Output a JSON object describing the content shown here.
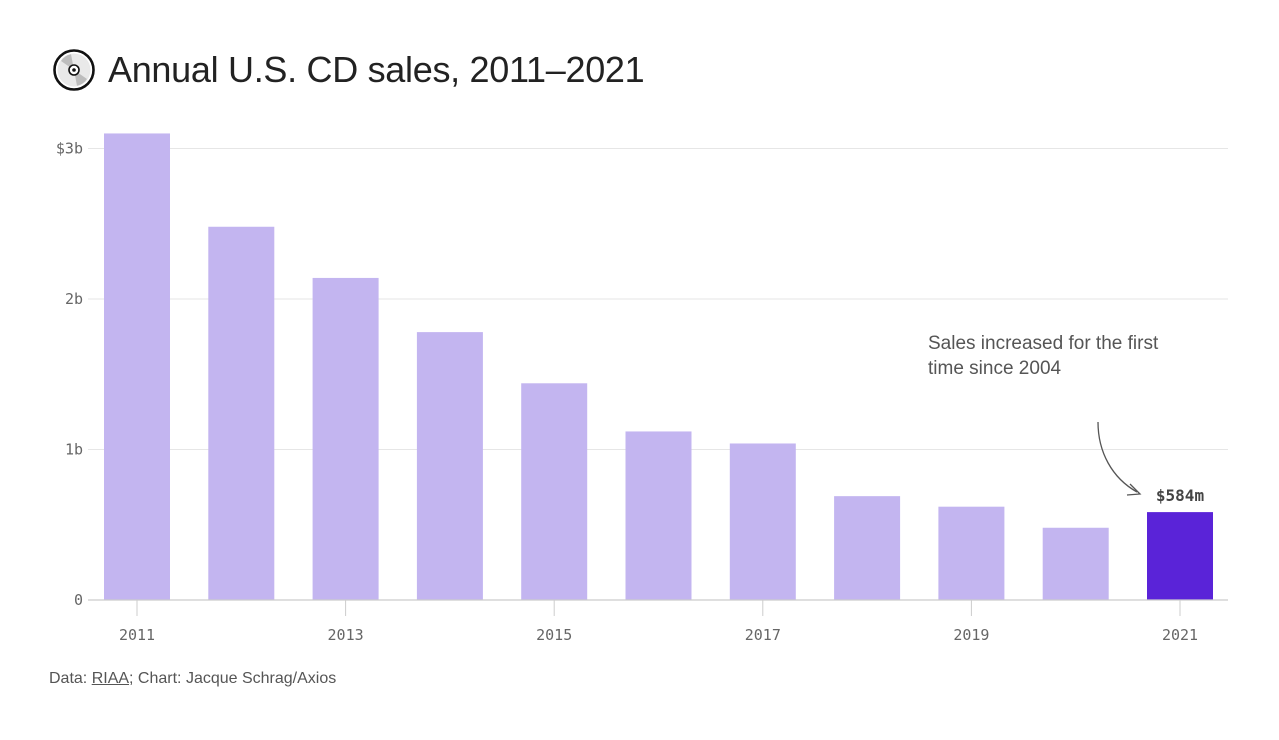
{
  "title": "Annual U.S. CD sales, 2011–2021",
  "icon": "cd-disc-icon",
  "colors": {
    "bar": "#c3b5f0",
    "highlight": "#5a23d8",
    "grid": "#e6e6e6",
    "axis": "#cccccc"
  },
  "chart_data": {
    "type": "bar",
    "categories": [
      "2011",
      "2012",
      "2013",
      "2014",
      "2015",
      "2016",
      "2017",
      "2018",
      "2019",
      "2020",
      "2021"
    ],
    "values": [
      3.1,
      2.48,
      2.14,
      1.78,
      1.44,
      1.12,
      1.04,
      0.69,
      0.62,
      0.48,
      0.584
    ],
    "x_tick_labels": [
      "2011",
      "",
      "2013",
      "",
      "2015",
      "",
      "2017",
      "",
      "2019",
      "",
      "2021"
    ],
    "y_ticks": [
      0,
      1,
      2,
      3
    ],
    "y_tick_labels": [
      "0",
      "1b",
      "2b",
      "$3b"
    ],
    "ylim": [
      0,
      3
    ],
    "highlight_index": 10,
    "highlight_label": "$584m",
    "annotation": [
      "Sales increased for the first",
      "time since 2004"
    ],
    "grid": true,
    "legend": "none"
  },
  "footer": {
    "prefix": "Data: ",
    "source_link": "RIAA",
    "suffix": "; Chart: Jacque Schrag/Axios"
  }
}
